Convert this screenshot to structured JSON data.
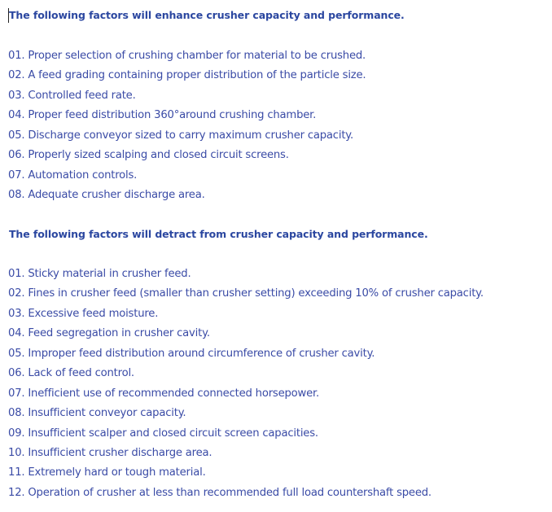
{
  "enhance": {
    "heading": "The following factors will enhance crusher capacity and performance.",
    "items": [
      "01. Proper selection of crushing chamber for material to be crushed.",
      "02. A feed grading containing proper distribution of the particle size.",
      "03. Controlled feed rate.",
      "04. Proper feed distribution 360°around crushing chamber.",
      "05. Discharge conveyor sized to carry maximum crusher capacity.",
      "06. Properly sized scalping and closed circuit screens.",
      "07. Automation controls.",
      "08. Adequate crusher discharge area."
    ]
  },
  "detract": {
    "heading": "The following factors will detract from crusher capacity and performance.",
    "items": [
      "01. Sticky material in crusher feed.",
      "02. Fines in crusher feed (smaller than crusher setting) exceeding 10% of crusher capacity.",
      "03. Excessive feed moisture.",
      "04. Feed segregation in crusher cavity.",
      "05. Improper feed distribution around circumference of crusher cavity.",
      "06. Lack of feed control.",
      "07. Inefficient use of recommended connected horsepower.",
      "08. Insufficient conveyor capacity.",
      "09. Insufficient scalper and closed circuit screen capacities.",
      "10. Insufficient crusher discharge area.",
      "11. Extremely hard or tough material.",
      "12. Operation of crusher at less than recommended full load countershaft speed."
    ]
  }
}
